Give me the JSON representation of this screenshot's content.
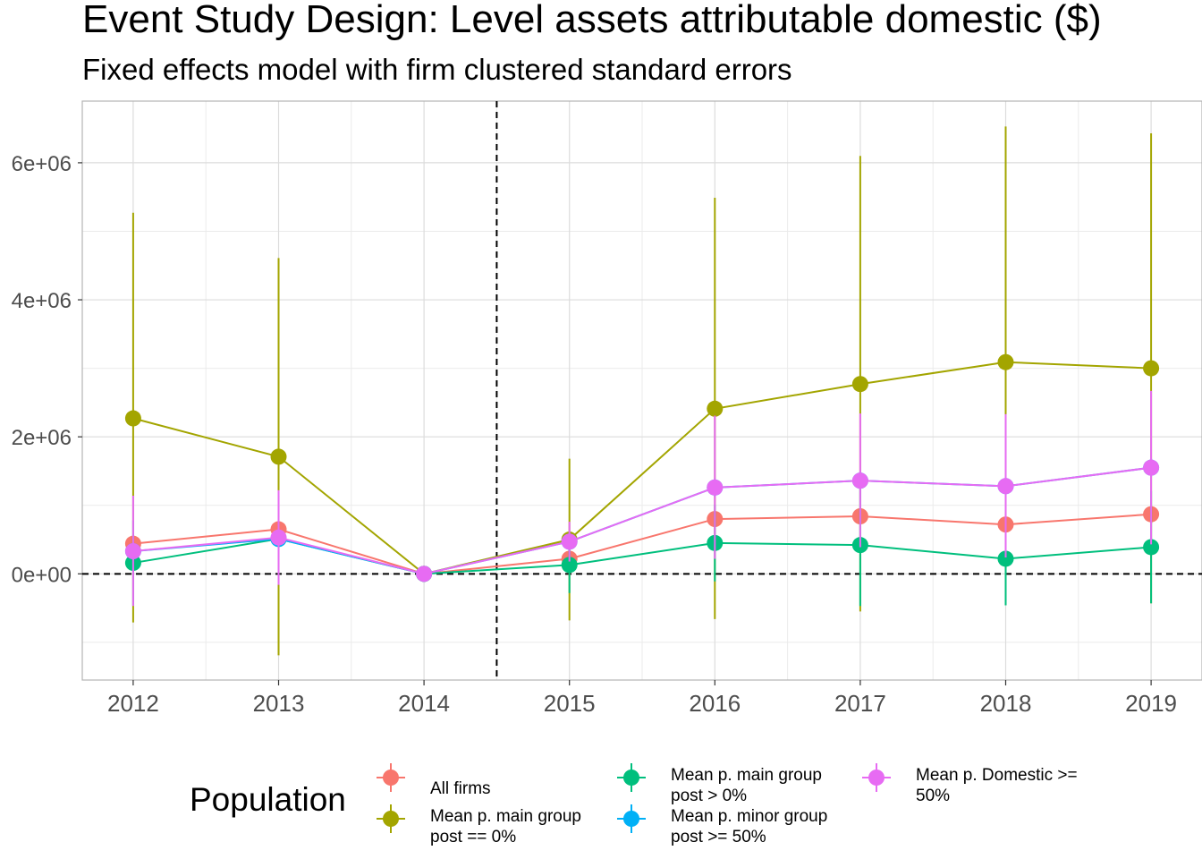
{
  "chart_data": {
    "type": "line",
    "title": "Event Study Design: Level assets attributable domestic  ($)",
    "subtitle": "Fixed effects model with firm clustered standard errors",
    "x": [
      2012,
      2013,
      2014,
      2015,
      2016,
      2017,
      2018,
      2019
    ],
    "xlabel": "",
    "ylabel": "",
    "ylim": [
      -1550000,
      6900000
    ],
    "yticks": [
      0,
      2000000,
      4000000,
      6000000
    ],
    "ytick_labels": [
      "0e+00",
      "2e+06",
      "4e+06",
      "6e+06"
    ],
    "grid": true,
    "reference_lines": {
      "vertical_x": 2014.5,
      "horizontal_y": 0
    },
    "legend": {
      "title": "Population",
      "position": "bottom"
    },
    "series": [
      {
        "name": "All firms",
        "color": "#F8766D",
        "values": [
          440000,
          650000,
          0,
          220000,
          800000,
          840000,
          720000,
          870000
        ],
        "lower": [
          350000,
          560000,
          0,
          140000,
          690000,
          720000,
          600000,
          740000
        ],
        "upper": [
          530000,
          740000,
          0,
          300000,
          910000,
          960000,
          840000,
          1000000
        ]
      },
      {
        "name": "Mean p. main group post == 0%",
        "color": "#A3A500",
        "values": [
          2270000,
          1710000,
          0,
          500000,
          2410000,
          2770000,
          3090000,
          3000000
        ],
        "lower": [
          -710000,
          -1190000,
          0,
          -680000,
          -660000,
          -550000,
          -460000,
          -430000
        ],
        "upper": [
          5270000,
          4610000,
          0,
          1680000,
          5490000,
          6100000,
          6530000,
          6430000
        ]
      },
      {
        "name": "Mean p. main group post > 0%",
        "color": "#00BF7D",
        "values": [
          160000,
          510000,
          0,
          130000,
          450000,
          420000,
          220000,
          390000
        ],
        "lower": [
          -460000,
          -120000,
          0,
          -280000,
          -110000,
          -470000,
          -460000,
          -430000
        ],
        "upper": [
          780000,
          1140000,
          0,
          540000,
          1010000,
          1310000,
          900000,
          1210000
        ]
      },
      {
        "name": "Mean p. minor group post >= 50%",
        "color": "#00B0F6",
        "values": [
          330000,
          510000,
          0,
          470000,
          1260000,
          1360000,
          1280000,
          1550000
        ],
        "lower": [
          200000,
          380000,
          0,
          340000,
          1130000,
          1230000,
          1150000,
          1420000
        ],
        "upper": [
          460000,
          640000,
          0,
          600000,
          1390000,
          1490000,
          1410000,
          1680000
        ]
      },
      {
        "name": "Mean p. Domestic >= 50%",
        "color": "#E76BF3",
        "values": [
          330000,
          530000,
          0,
          470000,
          1260000,
          1360000,
          1280000,
          1550000
        ],
        "lower": [
          -470000,
          -160000,
          0,
          180000,
          220000,
          390000,
          240000,
          430000
        ],
        "upper": [
          1140000,
          1220000,
          0,
          760000,
          2310000,
          2340000,
          2330000,
          2670000
        ]
      }
    ]
  }
}
